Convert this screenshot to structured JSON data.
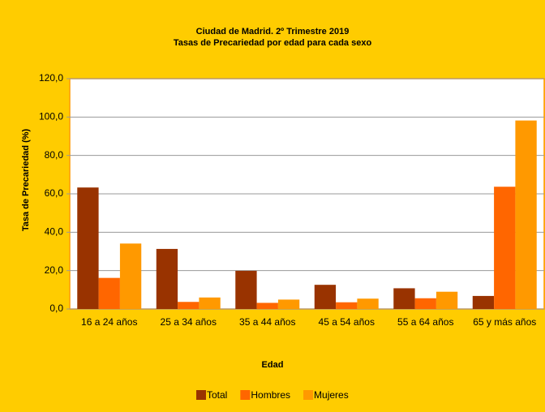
{
  "chart_data": {
    "type": "bar",
    "title": "Ciudad de Madrid. 2º Trimestre 2019",
    "subtitle": "Tasas de Precariedad por edad para cada sexo",
    "x_label": "Edad",
    "y_label": "Tasa de Precariedad (%)",
    "categories": [
      "16 a 24 años",
      "25 a 34 años",
      "35 a 44 años",
      "45 a 54 años",
      "55 a 64 años",
      "65 y más años"
    ],
    "series": [
      {
        "name": "Total",
        "color": "#993300",
        "values": [
          63.3,
          31.3,
          19.9,
          12.6,
          10.8,
          6.8
        ]
      },
      {
        "name": "Hombres",
        "color": "#FF6600",
        "values": [
          16.2,
          3.7,
          3.2,
          3.5,
          5.6,
          63.7
        ]
      },
      {
        "name": "Mujeres",
        "color": "#FF9900",
        "values": [
          34.1,
          6.0,
          4.9,
          5.4,
          9.0,
          98.2
        ]
      }
    ],
    "ylim": [
      0,
      120
    ],
    "yticks": [
      {
        "value": 0,
        "label": "0,0"
      },
      {
        "value": 20,
        "label": "20,0"
      },
      {
        "value": 40,
        "label": "40,0"
      },
      {
        "value": 60,
        "label": "60,0"
      },
      {
        "value": 80,
        "label": "80,0"
      },
      {
        "value": 100,
        "label": "100,0"
      },
      {
        "value": 120,
        "label": "120,0"
      }
    ],
    "grid": true,
    "legend": "bottom"
  }
}
